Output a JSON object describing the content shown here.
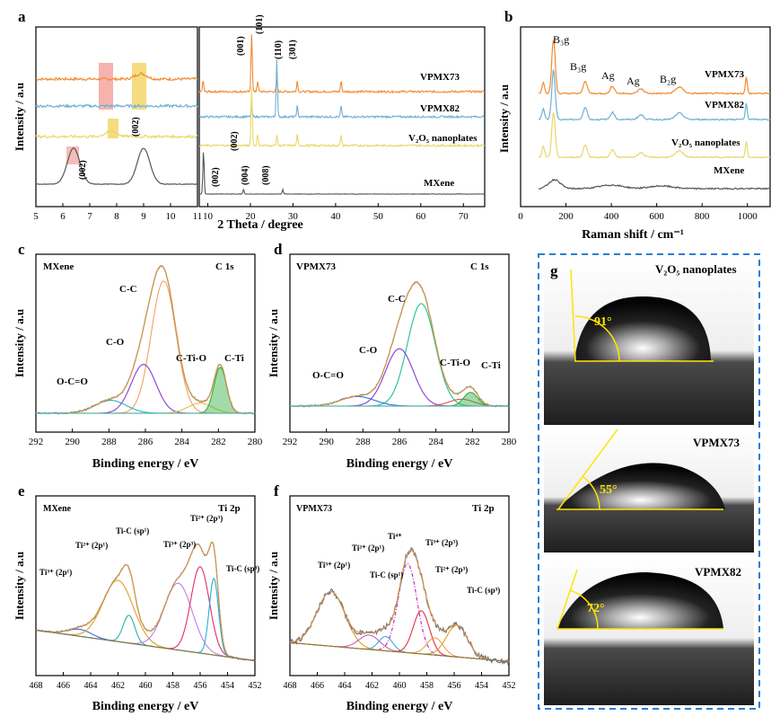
{
  "panels": {
    "a": {
      "letter": "a",
      "xlabel": "2 Theta / degree",
      "ylabel": "Intensity / a.u",
      "left_ticks": [
        "5",
        "6",
        "7",
        "8",
        "9",
        "10",
        "11"
      ],
      "right_ticks": [
        "10",
        "20",
        "30",
        "40",
        "50",
        "60",
        "70"
      ],
      "samples": [
        "VPMX73",
        "VPMX82",
        "V₂O₅ nanoplates",
        "MXene"
      ],
      "peak_labels": [
        "(001)",
        "(101)",
        "(110)",
        "(301)",
        "(002)",
        "(002)",
        "(002)",
        "(004)",
        "(008)",
        "(002)"
      ]
    },
    "b": {
      "letter": "b",
      "xlabel": "Raman shift / cm⁻¹",
      "ylabel": "Intensity / a.u",
      "ticks": [
        "0",
        "200",
        "400",
        "600",
        "800",
        "1000"
      ],
      "samples": [
        "VPMX73",
        "VPMX82",
        "V₂O₅ nanoplates",
        "MXene"
      ],
      "modes": [
        "B₃g",
        "B₃g",
        "Ag",
        "Ag",
        "B₂g"
      ]
    },
    "c": {
      "letter": "c",
      "sample": "MXene",
      "region": "C 1s",
      "xlabel": "Binding energy / eV",
      "ylabel": "Intensity / a.u",
      "ticks": [
        "292",
        "290",
        "288",
        "286",
        "284",
        "282",
        "280"
      ],
      "components": [
        "C-C",
        "C-O",
        "O-C=O",
        "C-Ti-O",
        "C-Ti"
      ]
    },
    "d": {
      "letter": "d",
      "sample": "VPMX73",
      "region": "C 1s",
      "xlabel": "Binding energy / eV",
      "ylabel": "Intensity / a.u",
      "ticks": [
        "292",
        "290",
        "288",
        "286",
        "284",
        "282",
        "280"
      ],
      "components": [
        "C-C",
        "C-O",
        "O-C=O",
        "C-Ti-O",
        "C-Ti"
      ]
    },
    "e": {
      "letter": "e",
      "sample": "MXene",
      "region": "Ti 2p",
      "xlabel": "Binding energy / eV",
      "ylabel": "Intensity / a.u",
      "ticks": [
        "468",
        "466",
        "464",
        "462",
        "460",
        "458",
        "456",
        "454",
        "452"
      ],
      "components": [
        "Ti³⁺ (2p¹)",
        "Ti²⁺ (2p¹)",
        "Ti-C (sp¹)",
        "Ti³⁺ (2p³)",
        "Ti²⁺ (2p³)",
        "Ti-C (sp³)"
      ]
    },
    "f": {
      "letter": "f",
      "sample": "VPMX73",
      "region": "Ti 2p",
      "xlabel": "Binding energy / eV",
      "ylabel": "Intensity / a.u",
      "ticks": [
        "468",
        "466",
        "464",
        "462",
        "460",
        "458",
        "456",
        "454",
        "452"
      ],
      "components": [
        "Ti³⁺ (2p¹)",
        "Ti²⁺ (2p¹)",
        "Ti-C (sp¹)",
        "Ti⁴⁺",
        "Ti³⁺ (2p³)",
        "Ti²⁺ (2p³)",
        "Ti-C (sp³)"
      ]
    },
    "g": {
      "letter": "g",
      "images": [
        {
          "label": "V₂O₅ nanoplates",
          "angle": "91°"
        },
        {
          "label": "VPMX73",
          "angle": "55°"
        },
        {
          "label": "VPMX82",
          "angle": "72°"
        }
      ]
    }
  },
  "colors": {
    "VPMX73": "#f28a30",
    "VPMX82": "#6fb0d4",
    "V2O5": "#e8d86a",
    "MXene": "#555555",
    "highlight_red": "#f4a6a0",
    "highlight_yellow": "#f5d66a",
    "dashed_box": "#2a7fd0"
  },
  "chart_data": [
    {
      "panel": "a",
      "type": "line",
      "xlabel": "2 Theta / degree",
      "ylabel": "Intensity / a.u",
      "xlim_left": [
        5,
        11
      ],
      "xlim_right": [
        8,
        75
      ],
      "series": [
        {
          "name": "VPMX73",
          "peaks_2theta": [
            8.9,
            20.3,
            21.7,
            26.2,
            31.0,
            41.3
          ]
        },
        {
          "name": "VPMX82",
          "peaks_2theta": [
            20.3,
            26.2,
            31.0,
            41.3
          ]
        },
        {
          "name": "V₂O₅ nanoplates",
          "peaks_2theta": [
            7.8,
            20.3,
            21.7,
            26.2,
            31.0,
            41.3
          ]
        },
        {
          "name": "MXene",
          "peaks_2theta": [
            6.4,
            9.0,
            18.4,
            27.6
          ]
        }
      ]
    },
    {
      "panel": "b",
      "type": "line",
      "xlabel": "Raman shift / cm⁻¹",
      "ylabel": "Intensity / a.u",
      "xlim": [
        0,
        1100
      ],
      "series": [
        {
          "name": "VPMX73",
          "peaks_cm": [
            145,
            285,
            405,
            530,
            700,
            995
          ]
        },
        {
          "name": "VPMX82",
          "peaks_cm": [
            145,
            285,
            405,
            530,
            700,
            995
          ]
        },
        {
          "name": "V₂O₅ nanoplates",
          "peaks_cm": [
            145,
            285,
            405,
            530,
            700,
            995
          ]
        },
        {
          "name": "MXene",
          "peaks_cm": [
            150,
            400,
            620
          ]
        }
      ]
    },
    {
      "panel": "c",
      "type": "line",
      "xlim": [
        292,
        280
      ],
      "components": [
        {
          "name": "C-C",
          "center": 285.0,
          "height": 0.92,
          "fwhm": 1.6
        },
        {
          "name": "C-O",
          "center": 286.1,
          "height": 0.34,
          "fwhm": 1.6
        },
        {
          "name": "O-C=O",
          "center": 287.9,
          "height": 0.09,
          "fwhm": 2.0
        },
        {
          "name": "C-Ti-O",
          "center": 283.0,
          "height": 0.07,
          "fwhm": 1.6
        },
        {
          "name": "C-Ti",
          "center": 281.9,
          "height": 0.32,
          "fwhm": 0.8
        }
      ]
    },
    {
      "panel": "d",
      "type": "line",
      "xlim": [
        292,
        280
      ],
      "components": [
        {
          "name": "C-C",
          "center": 284.8,
          "height": 0.75,
          "fwhm": 1.8
        },
        {
          "name": "C-O",
          "center": 286.0,
          "height": 0.42,
          "fwhm": 1.8
        },
        {
          "name": "O-C=O",
          "center": 288.3,
          "height": 0.07,
          "fwhm": 2.2
        },
        {
          "name": "C-Ti-O",
          "center": 282.6,
          "height": 0.05,
          "fwhm": 1.6
        },
        {
          "name": "C-Ti",
          "center": 282.1,
          "height": 0.1,
          "fwhm": 0.9
        }
      ]
    },
    {
      "panel": "e",
      "type": "line",
      "xlim": [
        468,
        452
      ],
      "components": [
        {
          "name": "Ti³⁺ (2p¹)",
          "center": 464.8,
          "height": 0.05,
          "fwhm": 2.0
        },
        {
          "name": "Ti²⁺ (2p¹)",
          "center": 462.0,
          "height": 0.44,
          "fwhm": 2.6
        },
        {
          "name": "Ti-C (sp¹)",
          "center": 461.2,
          "height": 0.2,
          "fwhm": 1.0
        },
        {
          "name": "Ti³⁺ (2p³)",
          "center": 457.6,
          "height": 0.48,
          "fwhm": 2.4
        },
        {
          "name": "Ti²⁺ (2p³)",
          "center": 456.0,
          "height": 0.62,
          "fwhm": 1.6
        },
        {
          "name": "Ti-C (sp³)",
          "center": 455.0,
          "height": 0.55,
          "fwhm": 0.8
        }
      ]
    },
    {
      "panel": "f",
      "type": "line",
      "xlim": [
        468,
        452
      ],
      "components": [
        {
          "name": "Ti³⁺ (2p¹)",
          "center": 465.0,
          "height": 0.38,
          "fwhm": 2.4
        },
        {
          "name": "Ti²⁺ (2p¹)",
          "center": 462.2,
          "height": 0.1,
          "fwhm": 1.8
        },
        {
          "name": "Ti-C (sp¹)",
          "center": 461.0,
          "height": 0.1,
          "fwhm": 1.2
        },
        {
          "name": "Ti⁴⁺",
          "center": 459.4,
          "height": 0.62,
          "fwhm": 1.6
        },
        {
          "name": "Ti³⁺ (2p³)",
          "center": 458.4,
          "height": 0.3,
          "fwhm": 1.4
        },
        {
          "name": "Ti²⁺ (2p³)",
          "center": 457.4,
          "height": 0.12,
          "fwhm": 1.4
        },
        {
          "name": "Ti-C (sp³)",
          "center": 455.8,
          "height": 0.22,
          "fwhm": 1.8
        }
      ]
    }
  ]
}
